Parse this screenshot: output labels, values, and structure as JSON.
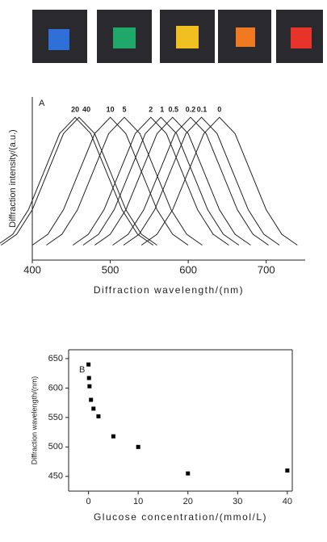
{
  "chart_data": [
    {
      "type": "line",
      "panel_label": "A",
      "xlabel": "Diffraction wavelength/(nm)",
      "ylabel": "Diffraction intensity/(a.u.)",
      "xlim": [
        400,
        750
      ],
      "xticks": [
        400,
        500,
        600,
        700
      ],
      "ylim": [
        -0.05,
        1.15
      ],
      "color": "#222",
      "series": [
        {
          "name": "20",
          "x": [
            355,
            375,
            395,
            415,
            435,
            455,
            475,
            495,
            515,
            535,
            555
          ],
          "values": [
            0.06,
            0.14,
            0.32,
            0.6,
            0.88,
            1,
            0.88,
            0.6,
            0.32,
            0.14,
            0.06
          ]
        },
        {
          "name": "40",
          "x": [
            360,
            380,
            400,
            420,
            440,
            460,
            480,
            500,
            520,
            540,
            560
          ],
          "values": [
            0.06,
            0.14,
            0.32,
            0.6,
            0.88,
            1,
            0.88,
            0.6,
            0.32,
            0.14,
            0.06
          ]
        },
        {
          "name": "10",
          "x": [
            400,
            420,
            440,
            460,
            480,
            500,
            520,
            540,
            560,
            580,
            600
          ],
          "values": [
            0.06,
            0.14,
            0.32,
            0.6,
            0.88,
            1,
            0.88,
            0.6,
            0.32,
            0.14,
            0.06
          ]
        },
        {
          "name": "5",
          "x": [
            418,
            438,
            458,
            478,
            498,
            518,
            538,
            558,
            578,
            598,
            618
          ],
          "values": [
            0.06,
            0.14,
            0.32,
            0.6,
            0.88,
            1,
            0.88,
            0.6,
            0.32,
            0.14,
            0.06
          ]
        },
        {
          "name": "2",
          "x": [
            452,
            472,
            492,
            512,
            532,
            552,
            572,
            592,
            612,
            632,
            652
          ],
          "values": [
            0.06,
            0.14,
            0.32,
            0.6,
            0.88,
            1,
            0.88,
            0.6,
            0.32,
            0.14,
            0.06
          ]
        },
        {
          "name": "1",
          "x": [
            465,
            485,
            505,
            525,
            545,
            565,
            585,
            605,
            625,
            645,
            665
          ],
          "values": [
            0.06,
            0.14,
            0.32,
            0.6,
            0.88,
            1,
            0.88,
            0.6,
            0.32,
            0.14,
            0.06
          ]
        },
        {
          "name": "0.5",
          "x": [
            480,
            500,
            520,
            540,
            560,
            580,
            600,
            620,
            640,
            660,
            680
          ],
          "values": [
            0.06,
            0.14,
            0.32,
            0.6,
            0.88,
            1,
            0.88,
            0.6,
            0.32,
            0.14,
            0.06
          ]
        },
        {
          "name": "0.2",
          "x": [
            503,
            523,
            543,
            563,
            583,
            603,
            623,
            643,
            663,
            683,
            703
          ],
          "values": [
            0.06,
            0.14,
            0.32,
            0.6,
            0.88,
            1,
            0.88,
            0.6,
            0.32,
            0.14,
            0.06
          ]
        },
        {
          "name": "0.1",
          "x": [
            517,
            537,
            557,
            577,
            597,
            617,
            637,
            657,
            677,
            697,
            717
          ],
          "values": [
            0.06,
            0.14,
            0.32,
            0.6,
            0.88,
            1,
            0.88,
            0.6,
            0.32,
            0.14,
            0.06
          ]
        },
        {
          "name": "0",
          "x": [
            540,
            560,
            580,
            600,
            620,
            640,
            660,
            680,
            700,
            720,
            740
          ],
          "values": [
            0.06,
            0.14,
            0.32,
            0.6,
            0.88,
            1,
            0.88,
            0.6,
            0.32,
            0.14,
            0.06
          ]
        }
      ]
    },
    {
      "type": "scatter",
      "panel_label": "B",
      "xlabel": "Glucose concentration/(mmol/L)",
      "ylabel": "Diffraction wavelength/(nm)",
      "xlim": [
        -4,
        41
      ],
      "xticks": [
        0,
        10,
        20,
        30,
        40
      ],
      "ylim": [
        425,
        665
      ],
      "yticks": [
        450,
        500,
        550,
        600,
        650
      ],
      "color": "#000",
      "x": [
        0,
        0.1,
        0.2,
        0.5,
        1,
        2,
        5,
        10,
        20,
        40
      ],
      "values": [
        640,
        617,
        603,
        580,
        565,
        552,
        518,
        500,
        455,
        460
      ]
    }
  ]
}
